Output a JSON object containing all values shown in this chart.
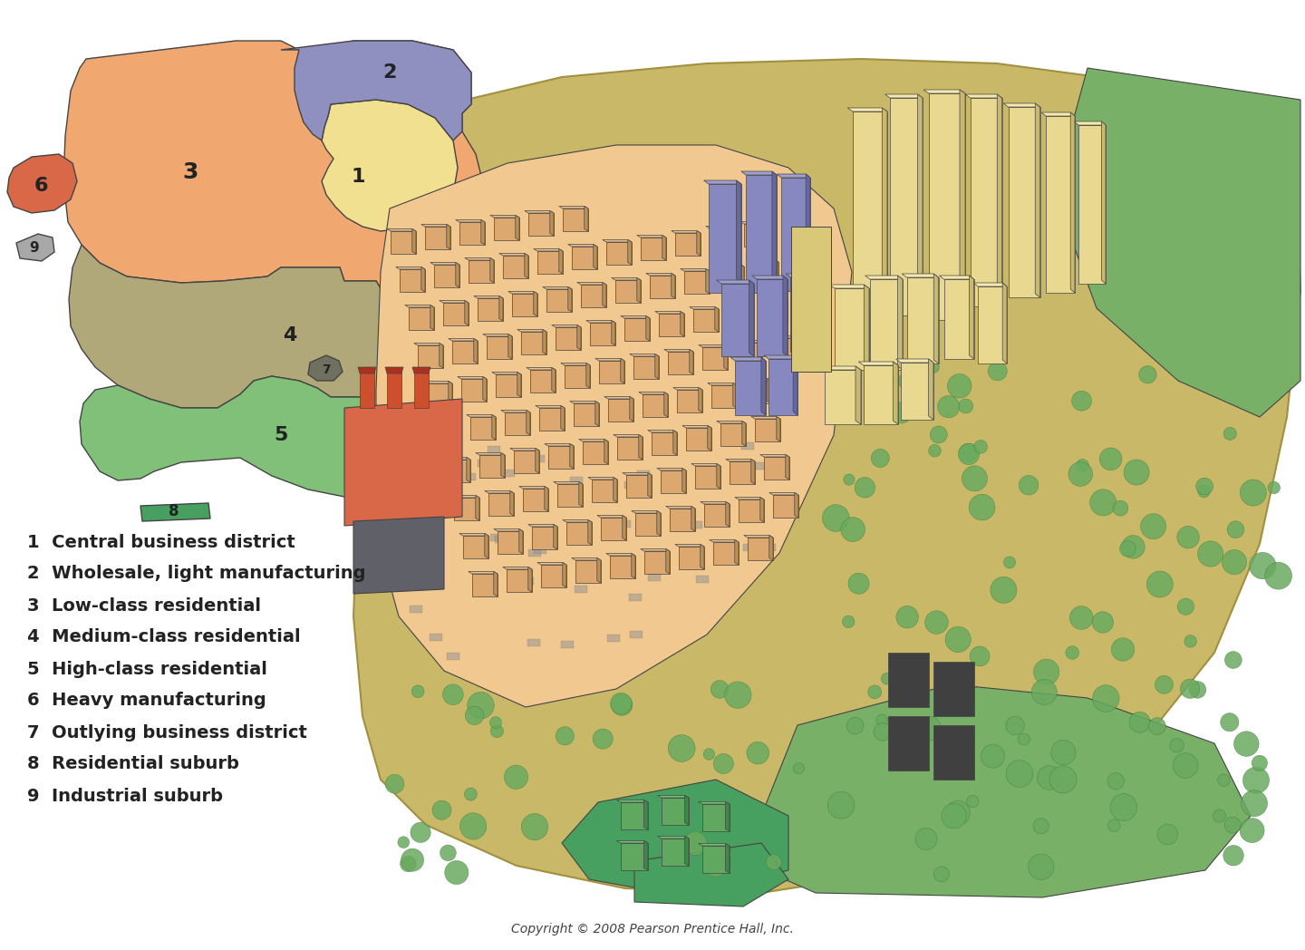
{
  "copyright": "Copyright © 2008 Pearson Prentice Hall, Inc.",
  "legend": [
    {
      "num": "1",
      "label": "Central business district"
    },
    {
      "num": "2",
      "label": "Wholesale, light manufacturing"
    },
    {
      "num": "3",
      "label": "Low-class residential"
    },
    {
      "num": "4",
      "label": "Medium-class residential"
    },
    {
      "num": "5",
      "label": "High-class residential"
    },
    {
      "num": "6",
      "label": "Heavy manufacturing"
    },
    {
      "num": "7",
      "label": "Outlying business district"
    },
    {
      "num": "8",
      "label": "Residential suburb"
    },
    {
      "num": "9",
      "label": "Industrial suburb"
    }
  ],
  "zone_colors": {
    "1": "#f0e090",
    "2": "#9090c0",
    "3": "#f0a870",
    "4": "#b0a878",
    "5": "#80c078",
    "6": "#d86848",
    "7": "#707060",
    "8": "#48a060",
    "9": "#a8a8a8"
  },
  "terrain_color": "#c8b868",
  "terrain_edge": "#a09040",
  "peach_color": "#f0c890",
  "green_veg": "#78b068",
  "green_bright": "#48a060",
  "background_color": "#ffffff",
  "outline_color": "#444444",
  "label_fontsize": 14,
  "legend_fontsize": 14,
  "copyright_fontsize": 10
}
